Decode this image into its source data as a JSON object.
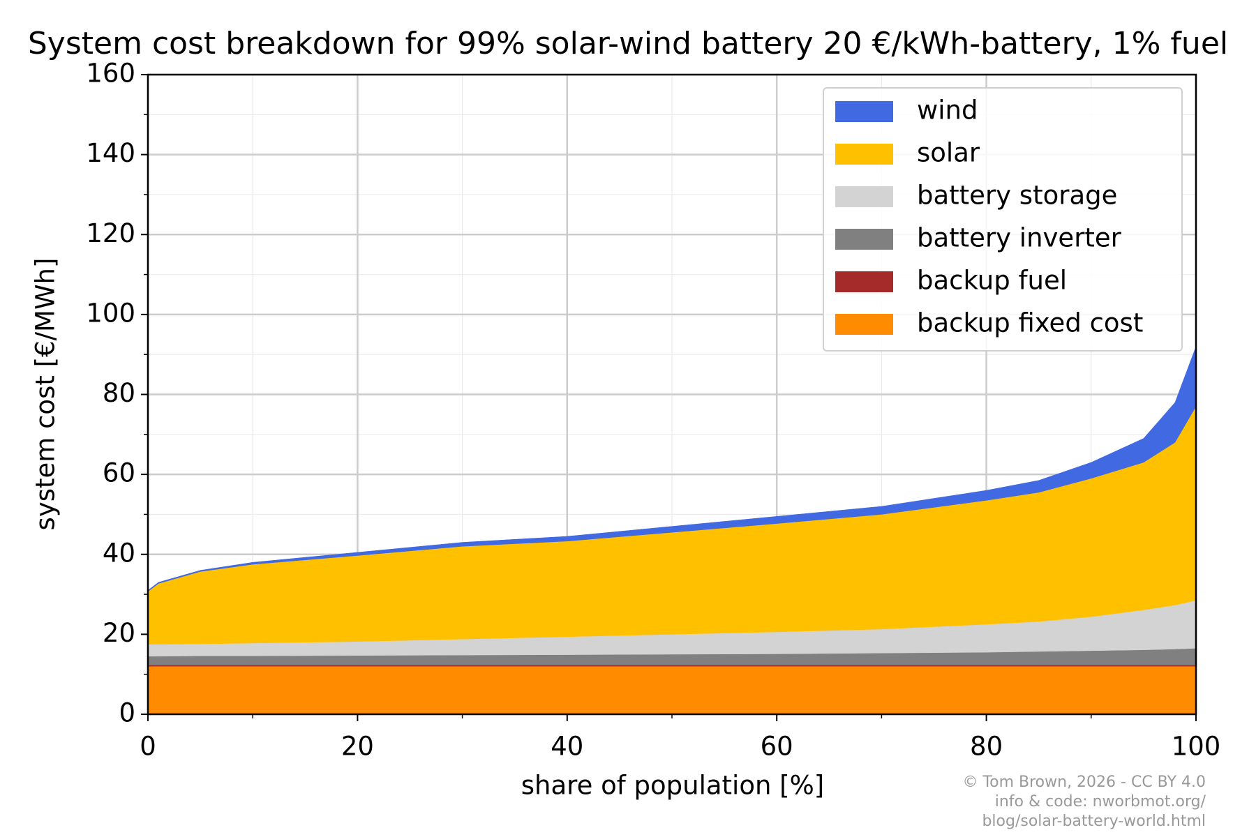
{
  "chart_data": {
    "type": "area",
    "stacked": true,
    "title": "System cost breakdown for 99% solar-wind battery 20 €/kWh-battery, 1% fuel",
    "xlabel": "share of population [%]",
    "ylabel": "system cost [€/MWh]",
    "x": [
      0,
      1,
      5,
      10,
      20,
      30,
      40,
      50,
      60,
      70,
      80,
      85,
      90,
      95,
      98,
      100
    ],
    "series": [
      {
        "name": "wind",
        "color": "#4169e1",
        "values": [
          0.3,
          0.3,
          0.3,
          0.5,
          0.8,
          1,
          1.2,
          1.5,
          1.8,
          2,
          2.5,
          3,
          4,
          6,
          10,
          15
        ]
      },
      {
        "name": "solar",
        "color": "#ffc000",
        "values": [
          13.2,
          15.2,
          18.1,
          19.7,
          21.5,
          23.2,
          23.9,
          25.5,
          27.1,
          28.7,
          31,
          32.3,
          34.6,
          36.9,
          40.7,
          48.5
        ]
      },
      {
        "name": "battery storage",
        "color": "#d3d3d3",
        "values": [
          3,
          3,
          3,
          3.2,
          3.5,
          4,
          4.5,
          5,
          5.5,
          6,
          7,
          7.5,
          8.5,
          10,
          11,
          12
        ]
      },
      {
        "name": "battery inverter",
        "color": "#808080",
        "values": [
          2.2,
          2.2,
          2.3,
          2.3,
          2.4,
          2.5,
          2.6,
          2.7,
          2.8,
          3,
          3.2,
          3.4,
          3.6,
          3.8,
          4,
          4.2
        ]
      },
      {
        "name": "backup fuel",
        "color": "#a52a2a",
        "values": [
          0.3,
          0.3,
          0.3,
          0.3,
          0.3,
          0.3,
          0.3,
          0.3,
          0.3,
          0.3,
          0.3,
          0.3,
          0.3,
          0.3,
          0.3,
          0.3
        ]
      },
      {
        "name": "backup fixed cost",
        "color": "#ff8c00",
        "values": [
          12,
          12,
          12,
          12,
          12,
          12,
          12,
          12,
          12,
          12,
          12,
          12,
          12,
          12,
          12,
          12
        ]
      }
    ],
    "xlim": [
      0,
      100
    ],
    "xticks": [
      0,
      20,
      40,
      60,
      80,
      100
    ],
    "ylim": [
      0,
      160
    ],
    "yticks": [
      0,
      20,
      40,
      60,
      80,
      100,
      120,
      140,
      160
    ],
    "grid": true,
    "minor_grid": true,
    "legend": "upper right",
    "credit": [
      "© Tom Brown, 2026 - CC BY 4.0",
      "info & code: nworbmot.org/",
      "blog/solar-battery-world.html"
    ]
  }
}
